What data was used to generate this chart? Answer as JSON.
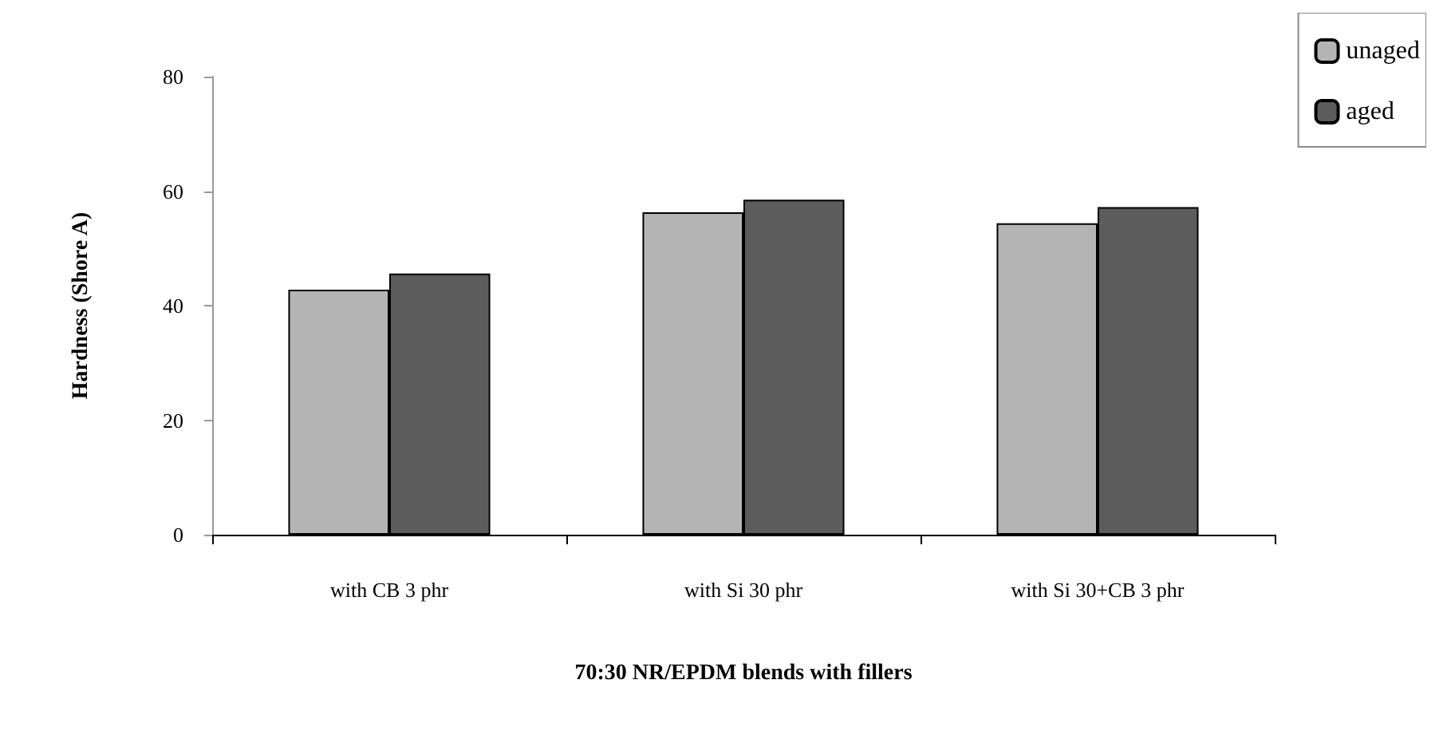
{
  "chart_data": {
    "type": "bar",
    "xlabel": "70:30 NR/EPDM blends with fillers",
    "ylabel": "Hardness (Shore A)",
    "categories": [
      "with CB 3 phr",
      "with Si 30 phr",
      "with Si 30+CB 3 phr"
    ],
    "series": [
      {
        "name": "unaged",
        "color": "#b4b4b4",
        "values": [
          42.8,
          56.3,
          54.4
        ]
      },
      {
        "name": "aged",
        "color": "#5c5c5c",
        "values": [
          45.6,
          58.5,
          57.2
        ]
      }
    ],
    "ylim": [
      0,
      80
    ],
    "yticks": [
      0,
      20,
      40,
      60,
      80
    ],
    "grid": false,
    "legend": "top right"
  }
}
